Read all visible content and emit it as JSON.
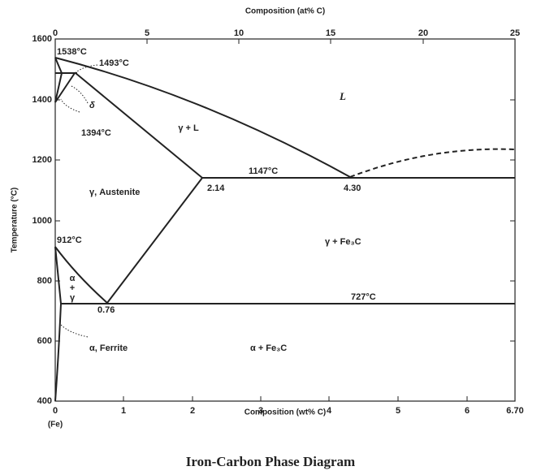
{
  "title": "Iron-Carbon Phase Diagram",
  "top_axis": {
    "label": "Composition (at% C)",
    "ticks": [
      "0",
      "5",
      "10",
      "15",
      "20",
      "25"
    ]
  },
  "bottom_axis": {
    "label": "Composition (wt% C)",
    "ticks": [
      "0",
      "1",
      "2",
      "3",
      "4",
      "5",
      "6",
      "6.70"
    ],
    "origin_note": "(Fe)"
  },
  "left_axis": {
    "label": "Temperature (°C)",
    "ticks": [
      "1600",
      "1400",
      "1200",
      "1000",
      "800",
      "600",
      "400"
    ]
  },
  "annotations": {
    "t1538": "1538°C",
    "t1493": "1493°C",
    "t1394": "1394°C",
    "delta": "δ",
    "liquid": "L",
    "gamma_l": "γ + L",
    "t1147": "1147°C",
    "c214": "2.14",
    "c430": "4.30",
    "austenite": "γ, Austenite",
    "t912": "912°C",
    "gamma_fe3c": "γ + Fe₃C",
    "alpha": "α",
    "plus": "+",
    "gamma": "γ",
    "c076": "0.76",
    "t727": "727°C",
    "ferrite": "α, Ferrite",
    "alpha_fe3c": "α + Fe₃C"
  }
}
